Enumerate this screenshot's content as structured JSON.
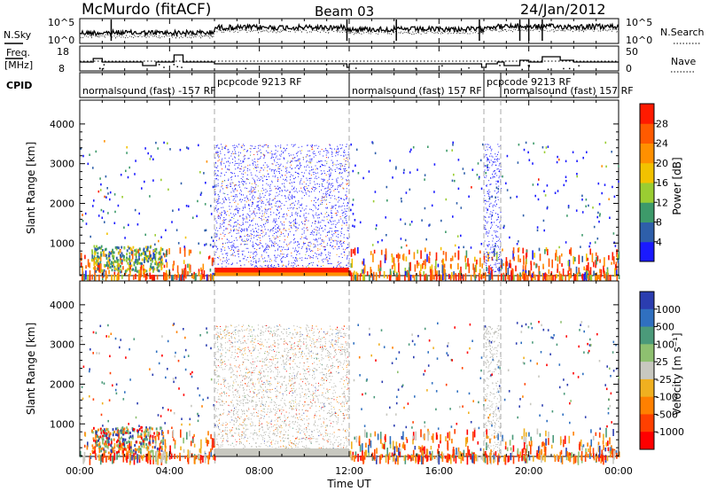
{
  "header": {
    "station": "McMurdo (fitACF)",
    "beam": "Beam 03",
    "date": "24/Jan/2012"
  },
  "noise_panel": {
    "left_label": "N.Sky",
    "right_label": "N.Search",
    "left_ticks": [
      "10^5",
      "10^0"
    ],
    "right_ticks": [
      "10^5",
      "10^0"
    ]
  },
  "freq_panel": {
    "left_label_1": "Freq.",
    "left_label_2": "[MHz]",
    "right_label": "Nave",
    "left_ticks": [
      "18",
      "8"
    ],
    "right_ticks": [
      "50",
      "0"
    ]
  },
  "cpid": {
    "label": "CPID",
    "segments": [
      {
        "text": "normalsound (fast) -157 RF",
        "start": 0.0,
        "row": "low"
      },
      {
        "text": "pcpcode 9213 RF",
        "start": 6.0,
        "row": "high"
      },
      {
        "text": "normalsound (fast) 157 RF",
        "start": 12.0,
        "row": "low"
      },
      {
        "text": "pcpcode 9213 RF",
        "start": 18.0,
        "row": "high"
      },
      {
        "text": "normalsound (fast) 157 RF",
        "start": 18.75,
        "row": "low"
      }
    ]
  },
  "axes": {
    "ylabel": "Slant Range [km]",
    "xlabel": "Time UT",
    "yticks": [
      "1000",
      "2000",
      "3000",
      "4000"
    ],
    "xticks": [
      "00:00",
      "04:00",
      "08:00",
      "12:00",
      "16:00",
      "20:00",
      "00:00"
    ]
  },
  "power_scale": {
    "label": "Power [dB]",
    "ticks": [
      "4",
      "8",
      "12",
      "16",
      "20",
      "24",
      "28"
    ],
    "colors": [
      "#1a1aff",
      "#2e5faa",
      "#3d9a6a",
      "#9acd32",
      "#f2c200",
      "#ff9000",
      "#ff5a00",
      "#ff1a00"
    ]
  },
  "velocity_scale": {
    "label": "Velocity [m s⁻¹]",
    "ticks": [
      "1000",
      "500",
      "100",
      "25",
      "-25",
      "-100",
      "-500",
      "-1000"
    ],
    "colors": [
      "#2b3db0",
      "#3070c0",
      "#4b9a7a",
      "#8ec070",
      "#c8c8c0",
      "#f0b020",
      "#ff8000",
      "#ff4000",
      "#ff0000"
    ]
  },
  "chart_data": {
    "type": "heatmap",
    "x_unit": "hours UT",
    "xlim": [
      0,
      24
    ],
    "ylim": [
      180,
      4600
    ],
    "mode_changes_hours": [
      6.0,
      12.0,
      18.0,
      18.75
    ],
    "panels": [
      "Power",
      "Velocity"
    ]
  }
}
